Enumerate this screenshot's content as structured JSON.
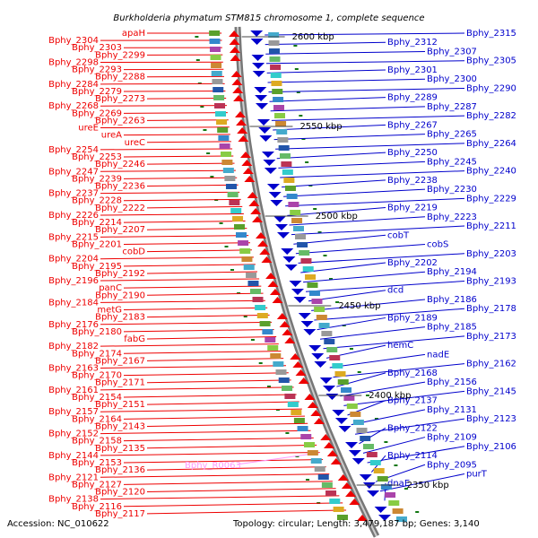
{
  "title": "Burkholderia phymatum STM815 chromosome 1, complete sequence",
  "accession": "Accession: NC_010622",
  "summary": "Topology: circular; Length: 3,479,187 bp; Genes: 3,140",
  "colors": {
    "forward": "#ee0000",
    "reverse": "#0000cc",
    "rna": "#ff99ff",
    "backbone": "#888888",
    "tick": "#117711"
  },
  "kbp_marks": [
    "2600 kbp",
    "2550 kbp",
    "2500 kbp",
    "2450 kbp",
    "2400 kbp",
    "2350 kbp"
  ],
  "left_labels": [
    "apaH",
    "Bphy_2304",
    "Bphy_2303",
    "Bphy_2299",
    "Bphy_2298",
    "Bphy_2293",
    "Bphy_2288",
    "Bphy_2284",
    "Bphy_2279",
    "Bphy_2273",
    "Bphy_2268",
    "Bphy_2269",
    "Bphy_2263",
    "ureE",
    "ureA",
    "ureC",
    "Bphy_2254",
    "Bphy_2253",
    "Bphy_2246",
    "Bphy_2247",
    "Bphy_2239",
    "Bphy_2236",
    "Bphy_2237",
    "Bphy_2228",
    "Bphy_2222",
    "Bphy_2226",
    "Bphy_2214",
    "Bphy_2207",
    "Bphy_2215",
    "Bphy_2201",
    "cobD",
    "Bphy_2204",
    "Bphy_2195",
    "Bphy_2192",
    "Bphy_2196",
    "panC",
    "Bphy_2190",
    "Bphy_2184",
    "metG",
    "Bphy_2183",
    "Bphy_2176",
    "Bphy_2180",
    "fabG",
    "Bphy_2182",
    "Bphy_2174",
    "Bphy_2167",
    "Bphy_2163",
    "Bphy_2170",
    "Bphy_2171",
    "Bphy_2161",
    "Bphy_2154",
    "Bphy_2151",
    "Bphy_2157",
    "Bphy_2164",
    "Bphy_2143",
    "Bphy_2152",
    "Bphy_2158",
    "Bphy_2135",
    "Bphy_2144",
    "Bphy_2153",
    "Bphy_2136",
    "Bphy_2121",
    "Bphy_2127",
    "Bphy_2120",
    "Bphy_2138",
    "Bphy_2116",
    "Bphy_2117"
  ],
  "rna_labels": [
    "Bphy_R0063"
  ],
  "right_labels": [
    "Bphy_2315",
    "Bphy_2312",
    "Bphy_2307",
    "Bphy_2305",
    "Bphy_2301",
    "Bphy_2300",
    "Bphy_2290",
    "Bphy_2289",
    "Bphy_2287",
    "Bphy_2282",
    "Bphy_2267",
    "Bphy_2265",
    "Bphy_2264",
    "Bphy_2250",
    "Bphy_2245",
    "Bphy_2240",
    "Bphy_2238",
    "Bphy_2230",
    "Bphy_2229",
    "Bphy_2219",
    "Bphy_2223",
    "Bphy_2211",
    "cobT",
    "cobS",
    "Bphy_2203",
    "Bphy_2202",
    "Bphy_2194",
    "Bphy_2193",
    "dcd",
    "Bphy_2186",
    "Bphy_2178",
    "Bphy_2189",
    "Bphy_2185",
    "Bphy_2173",
    "hemC",
    "nadE",
    "Bphy_2162",
    "Bphy_2168",
    "Bphy_2156",
    "Bphy_2145",
    "Bphy_2137",
    "Bphy_2131",
    "Bphy_2123",
    "Bphy_2122",
    "Bphy_2109",
    "Bphy_2106",
    "Bphy_2114",
    "Bphy_2095",
    "purT",
    "dnaE"
  ]
}
